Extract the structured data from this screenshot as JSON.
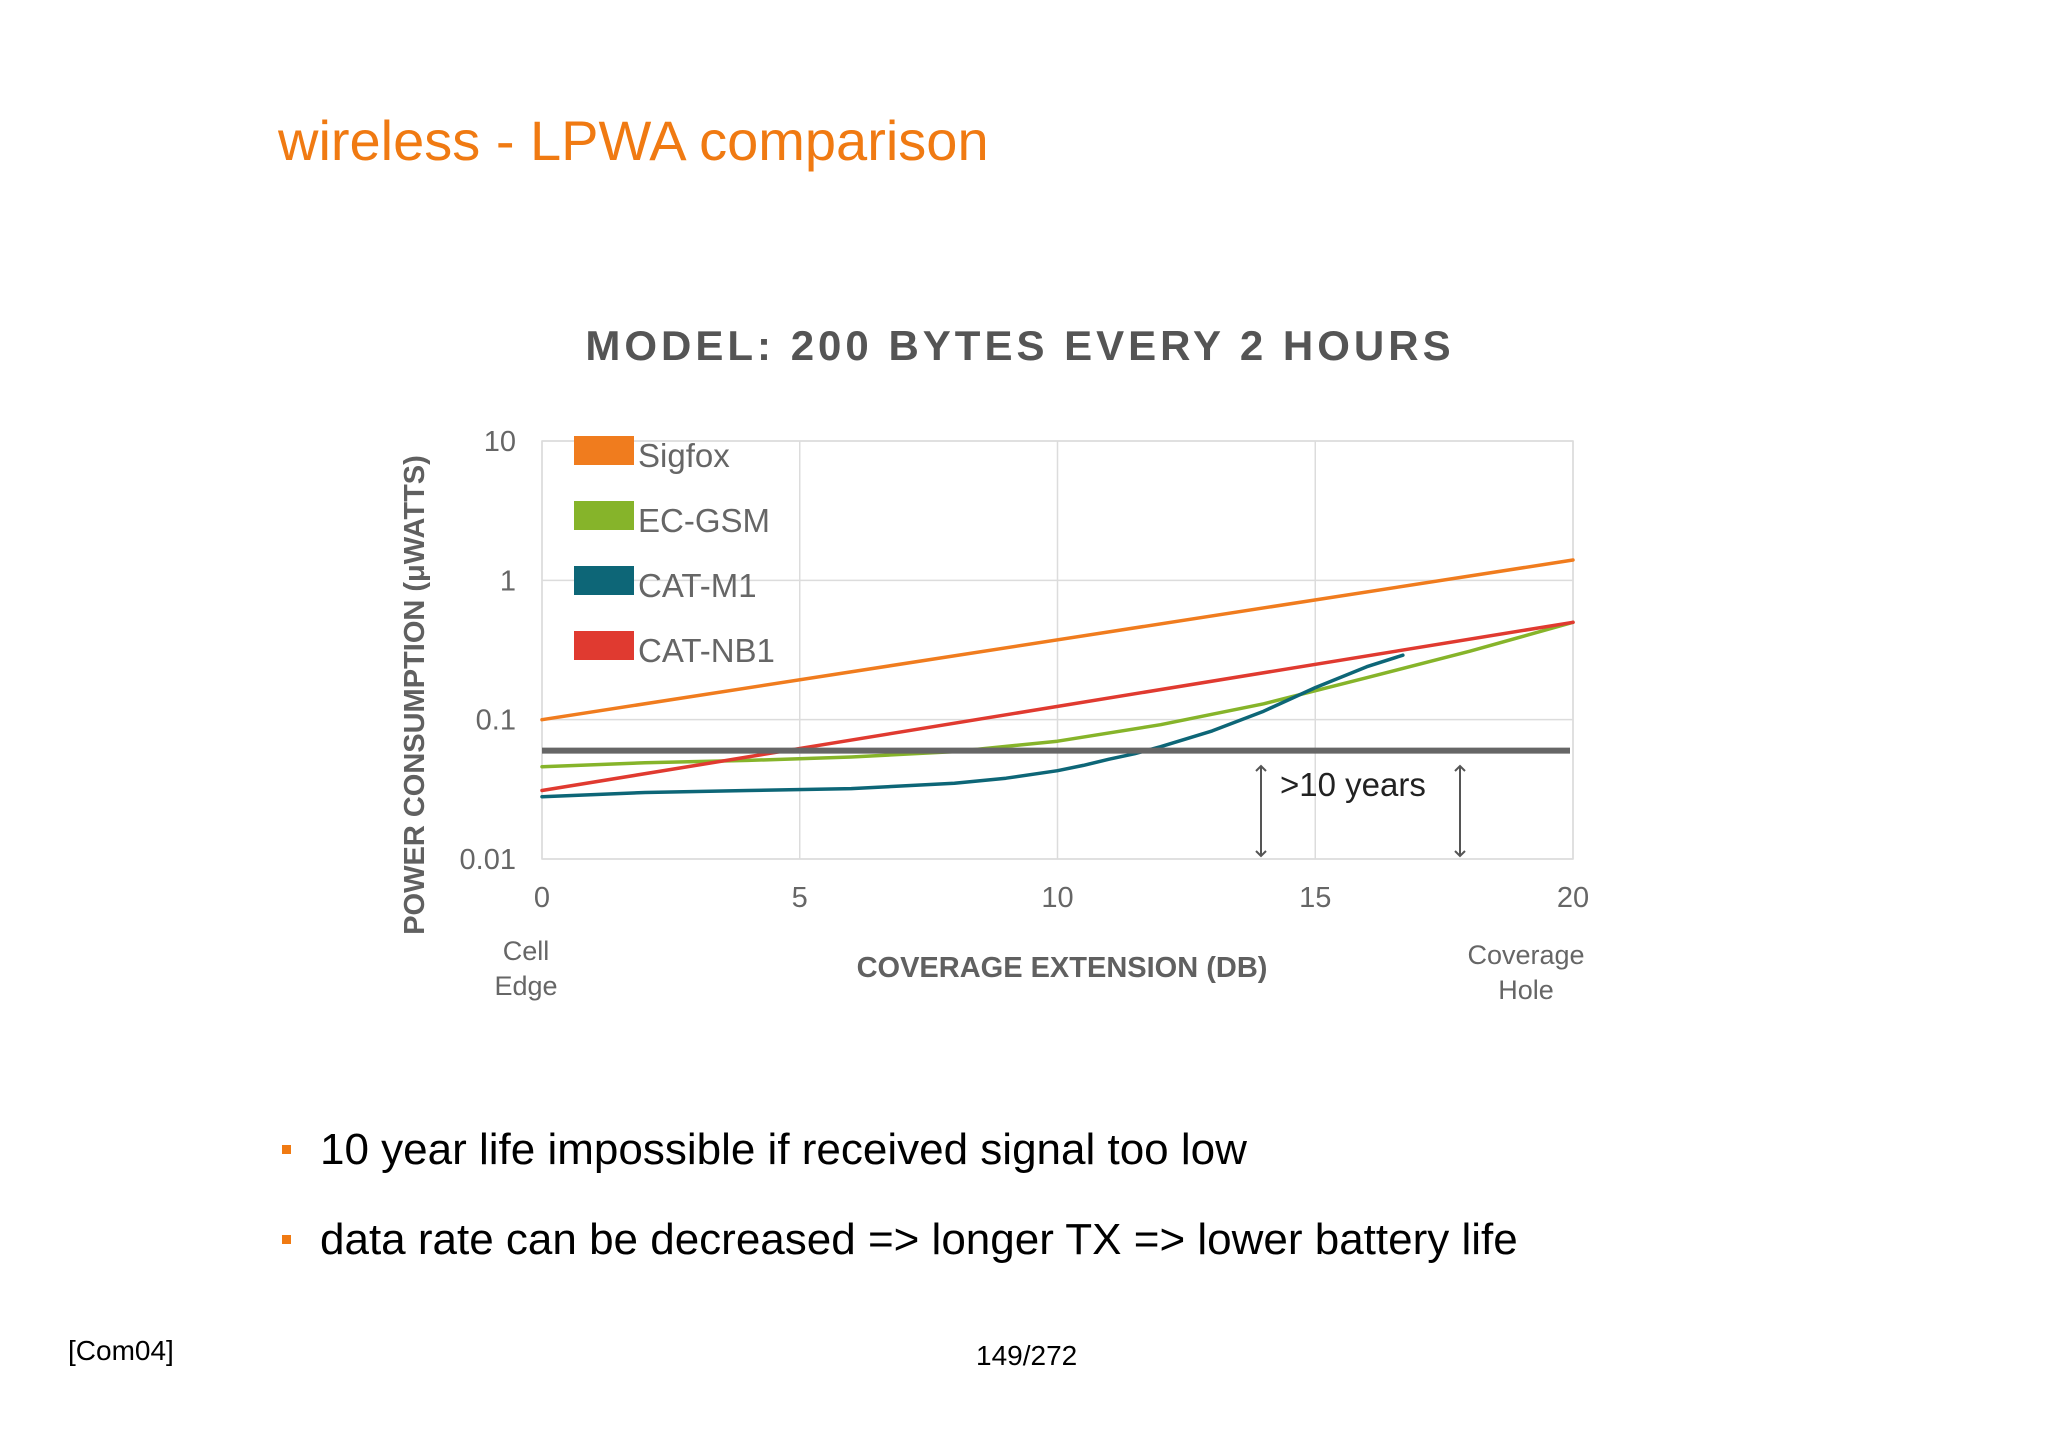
{
  "slide": {
    "title": "wireless - LPWA comparison",
    "bullets": [
      "10 year life impossible if received signal too low",
      "data rate can be decreased => longer TX => lower battery life"
    ],
    "citation": "[Com04]",
    "page_number": "149/272"
  },
  "colors": {
    "accent": "#f07a12",
    "sigfox": "#f07c1e",
    "ec_gsm": "#86b42a",
    "cat_m1": "#0d6677",
    "cat_nb1": "#e03a30",
    "threshold": "#666666"
  },
  "chart_data": {
    "type": "line",
    "title": "MODEL: 200 BYTES EVERY 2 HOURS",
    "xlabel": "COVERAGE EXTENSION (DB)",
    "ylabel": "POWER CONSUMPTION (μWATTS)",
    "y_scale": "log",
    "xlim": [
      0,
      20
    ],
    "ylim": [
      0.01,
      10
    ],
    "x_ticks": [
      "0",
      "5",
      "10",
      "15",
      "20"
    ],
    "y_ticks": [
      "10",
      "1",
      "0.1",
      "0.01"
    ],
    "x_tick_values": [
      0,
      5,
      10,
      15,
      20
    ],
    "y_tick_values": [
      10,
      1,
      0.1,
      0.01
    ],
    "x_end_labels": {
      "left": [
        "Cell",
        "Edge"
      ],
      "right": [
        "Coverage",
        "Hole"
      ]
    },
    "grid": true,
    "legend": "top-left",
    "series": [
      {
        "name": "Sigfox",
        "color": "#f07c1e",
        "x": [
          0,
          20
        ],
        "y": [
          0.1,
          1.4
        ]
      },
      {
        "name": "EC-GSM",
        "color": "#86b42a",
        "x": [
          0,
          2,
          4,
          6,
          8,
          10,
          12,
          14,
          16,
          18,
          20
        ],
        "y": [
          0.046,
          0.049,
          0.051,
          0.054,
          0.059,
          0.07,
          0.092,
          0.13,
          0.2,
          0.31,
          0.5
        ]
      },
      {
        "name": "CAT-M1",
        "color": "#0d6677",
        "x": [
          0,
          2,
          4,
          6,
          8,
          9,
          10,
          10.5,
          11,
          11.5,
          12,
          13,
          14,
          15,
          16,
          16.7
        ],
        "y": [
          0.028,
          0.03,
          0.031,
          0.032,
          0.035,
          0.038,
          0.043,
          0.047,
          0.052,
          0.057,
          0.064,
          0.083,
          0.115,
          0.17,
          0.24,
          0.29
        ]
      },
      {
        "name": "CAT-NB1",
        "color": "#e03a30",
        "x": [
          0,
          20
        ],
        "y": [
          0.031,
          0.5
        ]
      }
    ],
    "threshold": {
      "y": 0.06,
      "label": ">10 years"
    }
  }
}
